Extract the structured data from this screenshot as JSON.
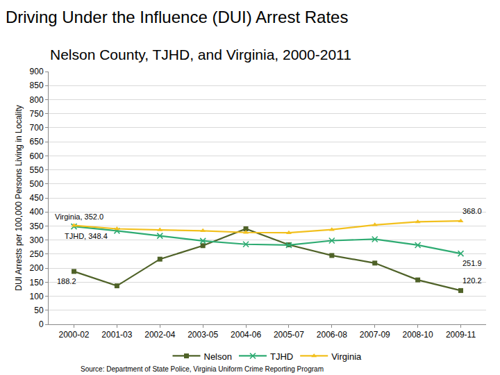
{
  "chart_data": {
    "type": "line",
    "title": "Driving Under the Influence (DUI) Arrest Rates",
    "subtitle": "Nelson County, TJHD, and Virginia, 2000-2011",
    "y_label": "DUI Arrests per 100,000 Persons Living in Locality",
    "source": "Source: Department of State Police, Virginia Uniform Crime Reporting Program",
    "categories": [
      "2000-02",
      "2001-03",
      "2002-04",
      "2003-05",
      "2004-06",
      "2005-07",
      "2006-08",
      "2007-09",
      "2008-10",
      "2009-11"
    ],
    "series": [
      {
        "name": "Nelson",
        "color": "#4f6228",
        "marker": "square",
        "line_style": "solid",
        "values": [
          188.2,
          137,
          232,
          280,
          340,
          283,
          245,
          218,
          158,
          120.2
        ],
        "value_labels": [
          "188.2",
          null,
          null,
          null,
          null,
          null,
          null,
          null,
          null,
          "120.2"
        ]
      },
      {
        "name": "TJHD",
        "color": "#2eab72",
        "marker": "x",
        "line_style": "solid",
        "values": [
          348.4,
          333,
          315,
          297,
          285,
          282,
          298,
          303,
          282,
          251.9
        ],
        "value_labels": [
          "TJHD, 348.4",
          null,
          null,
          null,
          null,
          null,
          null,
          null,
          null,
          "251.9"
        ]
      },
      {
        "name": "Virginia",
        "color": "#f2c01e",
        "marker": "triangle",
        "line_style": "solid",
        "values": [
          352.0,
          340,
          336,
          333,
          327,
          326,
          337,
          354,
          365,
          368.0
        ],
        "value_labels": [
          "Virginia, 352.0",
          null,
          null,
          null,
          null,
          null,
          null,
          null,
          null,
          "368.0"
        ]
      }
    ],
    "ylim": [
      0,
      900
    ],
    "yticks": [
      0,
      50,
      100,
      150,
      200,
      250,
      300,
      350,
      400,
      450,
      500,
      550,
      600,
      650,
      700,
      750,
      800,
      850,
      900
    ],
    "grid": true,
    "legend": "bottom"
  }
}
